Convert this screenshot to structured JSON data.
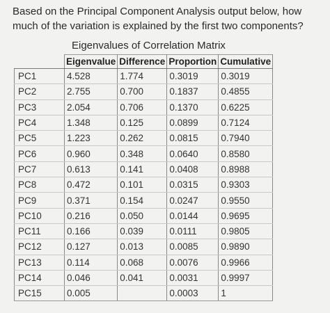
{
  "question": "Based on the Principal Component Analysis output below, how much of the variation is explained by the first two components?",
  "table": {
    "title": "Eigenvalues of Correlation Matrix",
    "headers": [
      "Eigenvalue",
      "Difference",
      "Proportion",
      "Cumulative"
    ],
    "rows": [
      {
        "pc": "PC1",
        "eigenvalue": "4.528",
        "difference": "1.774",
        "proportion": "0.3019",
        "cumulative": "0.3019"
      },
      {
        "pc": "PC2",
        "eigenvalue": "2.755",
        "difference": "0.700",
        "proportion": "0.1837",
        "cumulative": "0.4855"
      },
      {
        "pc": "PC3",
        "eigenvalue": "2.054",
        "difference": "0.706",
        "proportion": "0.1370",
        "cumulative": "0.6225"
      },
      {
        "pc": "PC4",
        "eigenvalue": "1.348",
        "difference": "0.125",
        "proportion": "0.0899",
        "cumulative": "0.7124"
      },
      {
        "pc": "PC5",
        "eigenvalue": "1.223",
        "difference": "0.262",
        "proportion": "0.0815",
        "cumulative": "0.7940"
      },
      {
        "pc": "PC6",
        "eigenvalue": "0.960",
        "difference": "0.348",
        "proportion": "0.0640",
        "cumulative": "0.8580"
      },
      {
        "pc": "PC7",
        "eigenvalue": "0.613",
        "difference": "0.141",
        "proportion": "0.0408",
        "cumulative": "0.8988"
      },
      {
        "pc": "PC8",
        "eigenvalue": "0.472",
        "difference": "0.101",
        "proportion": "0.0315",
        "cumulative": "0.9303"
      },
      {
        "pc": "PC9",
        "eigenvalue": "0.371",
        "difference": "0.154",
        "proportion": "0.0247",
        "cumulative": "0.9550"
      },
      {
        "pc": "PC10",
        "eigenvalue": "0.216",
        "difference": "0.050",
        "proportion": "0.0144",
        "cumulative": "0.9695"
      },
      {
        "pc": "PC11",
        "eigenvalue": "0.166",
        "difference": "0.039",
        "proportion": "0.0111",
        "cumulative": "0.9805"
      },
      {
        "pc": "PC12",
        "eigenvalue": "0.127",
        "difference": "0.013",
        "proportion": "0.0085",
        "cumulative": "0.9890"
      },
      {
        "pc": "PC13",
        "eigenvalue": "0.114",
        "difference": "0.068",
        "proportion": "0.0076",
        "cumulative": "0.9966"
      },
      {
        "pc": "PC14",
        "eigenvalue": "0.046",
        "difference": "0.041",
        "proportion": "0.0031",
        "cumulative": "0.9997"
      },
      {
        "pc": "PC15",
        "eigenvalue": "0.005",
        "difference": "",
        "proportion": "0.0003",
        "cumulative": "1"
      }
    ]
  }
}
